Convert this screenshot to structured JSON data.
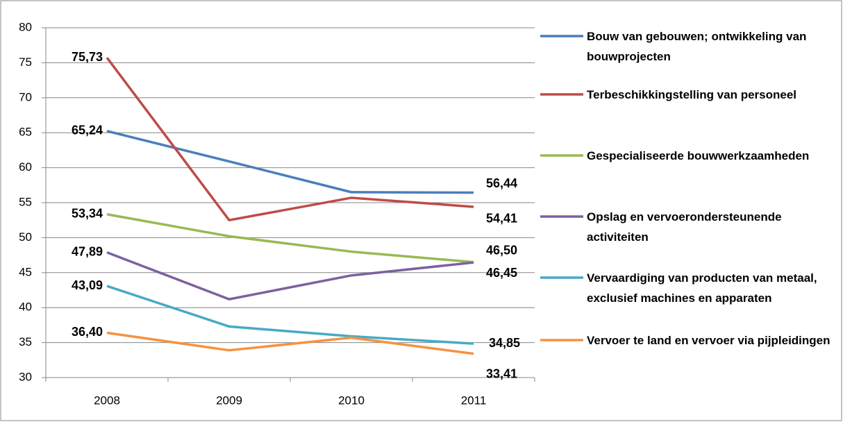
{
  "chart_data": {
    "type": "line",
    "categories": [
      "2008",
      "2009",
      "2010",
      "2011"
    ],
    "series": [
      {
        "name": "Bouw van gebouwen; ontwikkeling van bouwprojecten",
        "color": "#4a7ebb",
        "values": [
          65.24,
          60.9,
          56.5,
          56.44
        ],
        "value_labels": [
          "65,24",
          null,
          null,
          "56,44"
        ]
      },
      {
        "name": "Terbeschikkingstelling van personeel",
        "color": "#be4b48",
        "values": [
          75.73,
          52.5,
          55.7,
          54.41
        ],
        "value_labels": [
          "75,73",
          null,
          null,
          "54,41"
        ]
      },
      {
        "name": "Gespecialiseerde bouwwerkzaamheden",
        "color": "#98b954",
        "values": [
          53.34,
          50.2,
          48.0,
          46.5
        ],
        "value_labels": [
          "53,34",
          null,
          null,
          "46,50"
        ]
      },
      {
        "name": "Opslag en vervoerondersteunende activiteiten",
        "color": "#7d60a0",
        "values": [
          47.89,
          41.2,
          44.6,
          46.45
        ],
        "value_labels": [
          "47,89",
          null,
          null,
          "46,45"
        ]
      },
      {
        "name": "Vervaardiging van producten van metaal, exclusief machines en apparaten",
        "color": "#46aac5",
        "values": [
          43.09,
          37.3,
          35.9,
          34.85
        ],
        "value_labels": [
          "43,09",
          null,
          null,
          "34,85"
        ]
      },
      {
        "name": "Vervoer te land en vervoer via pijpleidingen",
        "color": "#f69240",
        "values": [
          36.4,
          33.9,
          35.7,
          33.41
        ],
        "value_labels": [
          "36,40",
          null,
          null,
          "33,41"
        ]
      }
    ],
    "ylim": [
      30,
      80
    ],
    "yticks": [
      30,
      35,
      40,
      45,
      50,
      55,
      60,
      65,
      70,
      75,
      80
    ],
    "grid": true
  }
}
